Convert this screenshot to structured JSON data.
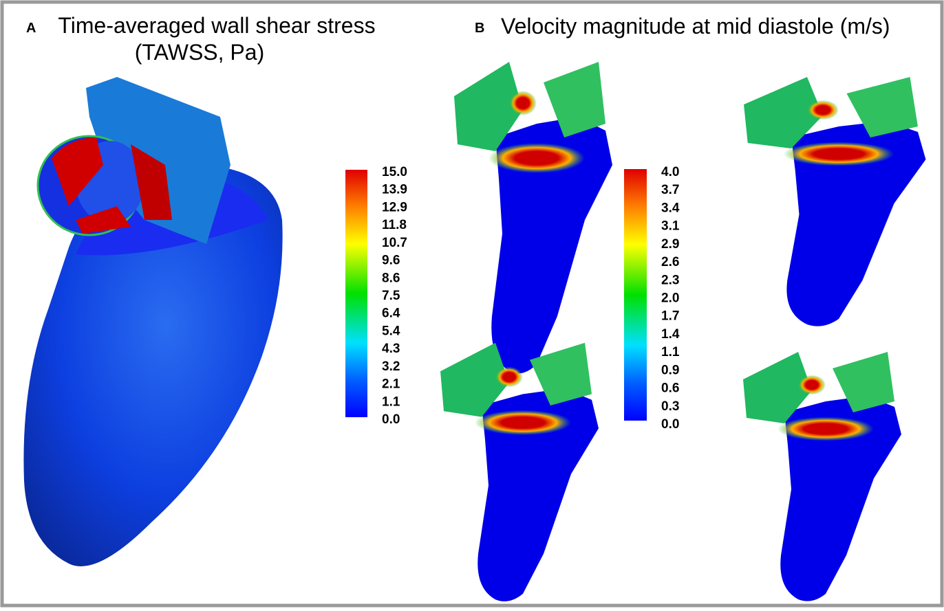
{
  "panel_a": {
    "label": "A",
    "title_line1": "Time-averaged wall shear stress",
    "title_line2": "(TAWSS, Pa)",
    "colorbar_labels": [
      "15.0",
      "13.9",
      "12.9",
      "11.8",
      "10.7",
      "9.6",
      "8.6",
      "7.5",
      "6.4",
      "5.4",
      "4.3",
      "3.2",
      "2.1",
      "1.1",
      "0.0"
    ]
  },
  "panel_b": {
    "label": "B",
    "title": "Velocity magnitude at mid diastole (m/s)",
    "colorbar_labels": [
      "4.0",
      "3.7",
      "3.4",
      "3.1",
      "2.9",
      "2.6",
      "2.3",
      "2.0",
      "1.7",
      "1.4",
      "1.1",
      "0.9",
      "0.6",
      "0.3",
      "0.0"
    ]
  }
}
